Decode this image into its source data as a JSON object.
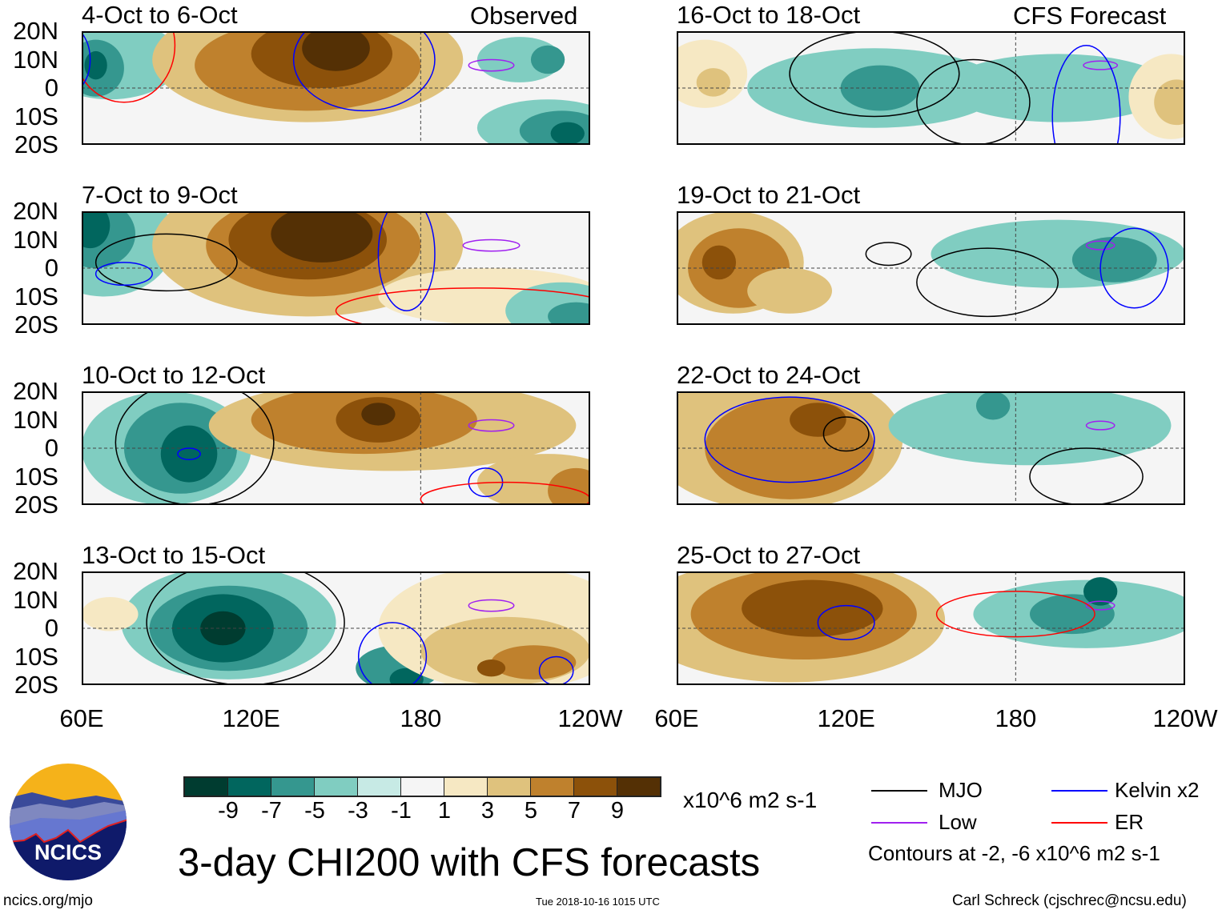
{
  "header": {
    "left_label": "Observed",
    "right_label": "CFS Forecast"
  },
  "panels": [
    {
      "title": "4-Oct to 6-Oct"
    },
    {
      "title": "7-Oct to 9-Oct"
    },
    {
      "title": "10-Oct to 12-Oct"
    },
    {
      "title": "13-Oct to 15-Oct"
    },
    {
      "title": "16-Oct to 18-Oct"
    },
    {
      "title": "19-Oct to 21-Oct"
    },
    {
      "title": "22-Oct to 24-Oct"
    },
    {
      "title": "25-Oct to 27-Oct"
    }
  ],
  "lat_labels": [
    "20N",
    "10N",
    "0",
    "10S",
    "20S"
  ],
  "lon_labels": [
    "60E",
    "120E",
    "180",
    "120W"
  ],
  "colorbar": {
    "colors": [
      "#003c30",
      "#01665e",
      "#35978f",
      "#80cdc1",
      "#c7eae5",
      "#f5f5f5",
      "#f6e8c3",
      "#dfc27d",
      "#bf812d",
      "#8c510a",
      "#543005"
    ],
    "ticks": [
      "-9",
      "-7",
      "-5",
      "-3",
      "-1",
      "1",
      "3",
      "5",
      "7",
      "9"
    ],
    "units": "x10^6 m2 s-1"
  },
  "legend": {
    "items": [
      {
        "label": "MJO",
        "color": "#000000"
      },
      {
        "label": "Kelvin x2",
        "color": "#0000ff"
      },
      {
        "label": "Low",
        "color": "#a020f0"
      },
      {
        "label": "ER",
        "color": "#ff0000"
      }
    ],
    "contours_note": "Contours at -2, -6 x10^6 m2 s-1"
  },
  "title": "3-day CHI200 with CFS forecasts",
  "logo_text": "NCICS",
  "footer": {
    "url": "ncics.org/mjo",
    "timestamp": "Tue 2018-10-16 1015 UTC",
    "credit": "Carl Schreck (cjschrec@ncsu.edu)"
  }
}
